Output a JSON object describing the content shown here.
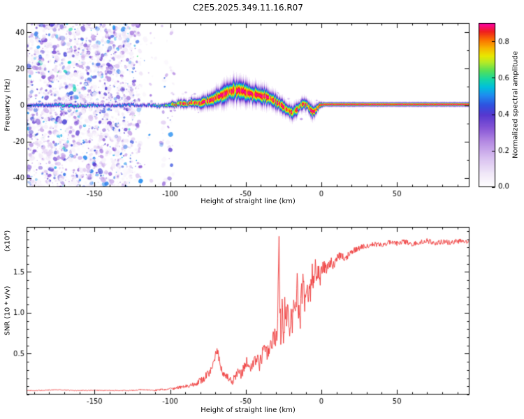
{
  "title": "C2E5.2025.349.11.16.R07",
  "chart_data": [
    {
      "type": "heatmap",
      "title": "",
      "xlabel": "Height of straight line (km)",
      "ylabel": "Frequency (Hz)",
      "xlim": [
        -195,
        98
      ],
      "ylim": [
        -45,
        45
      ],
      "xticks": {
        "values": [
          -150,
          -100,
          -50,
          0,
          50
        ],
        "labels": [
          "-150",
          "-100",
          "-50",
          "0",
          "50"
        ],
        "minor_step": 10
      },
      "yticks": {
        "values": [
          40,
          20,
          0,
          -20,
          -40
        ],
        "labels": [
          "40",
          "20",
          "0",
          "-20",
          "-40"
        ],
        "minor_step": 10
      },
      "colorbar": {
        "label": "Normalized spectral amplitude",
        "range": [
          0,
          0.9
        ],
        "ticks": {
          "values": [
            0.0,
            0.2,
            0.4,
            0.6,
            0.8
          ],
          "labels": [
            "0.0",
            "0.2",
            "0.4",
            "0.6",
            "0.8"
          ]
        },
        "colormap_stops": [
          [
            0.0,
            "#ffffff"
          ],
          [
            0.08,
            "#f1e8f8"
          ],
          [
            0.18,
            "#d8bff0"
          ],
          [
            0.28,
            "#b388e2"
          ],
          [
            0.36,
            "#8655d6"
          ],
          [
            0.44,
            "#5638cf"
          ],
          [
            0.5,
            "#2f52e0"
          ],
          [
            0.56,
            "#1e8cf0"
          ],
          [
            0.61,
            "#00c0dc"
          ],
          [
            0.66,
            "#18d8a0"
          ],
          [
            0.71,
            "#56e056"
          ],
          [
            0.76,
            "#b2ea28"
          ],
          [
            0.8,
            "#e8e800"
          ],
          [
            0.85,
            "#f8b400"
          ],
          [
            0.9,
            "#fa6e00"
          ],
          [
            0.95,
            "#ef1e1e"
          ],
          [
            1.0,
            "#ff00aa"
          ]
        ]
      },
      "ridge": {
        "comment": "center frequency of the echo ridge vs height of straight line",
        "x": [
          -195,
          -175,
          -160,
          -150,
          -140,
          -132,
          -126,
          -120,
          -114,
          -108,
          -102,
          -97,
          -93,
          -89,
          -85,
          -81,
          -77,
          -73,
          -69,
          -65,
          -61,
          -57,
          -53,
          -49,
          -45,
          -41,
          -37,
          -33,
          -30,
          -27,
          -24,
          -21,
          -19,
          -17,
          -15,
          -13,
          -11,
          -9,
          -7,
          -5,
          -3,
          -1,
          2,
          10,
          30,
          60,
          98
        ],
        "freq_hz": [
          0,
          0.3,
          -0.2,
          0.2,
          -0.3,
          0,
          0.4,
          0,
          0.3,
          -0.2,
          0.2,
          0.5,
          1.2,
          0.8,
          1.5,
          1.2,
          2.0,
          3.0,
          4.5,
          6.0,
          7.5,
          8.5,
          8.0,
          7.0,
          6.0,
          5.5,
          5.0,
          3.5,
          2.0,
          0.5,
          -1.5,
          -3.0,
          -4.0,
          -3.0,
          -1.0,
          0.5,
          1.0,
          0.0,
          -2.5,
          -3.5,
          -1.5,
          0.3,
          0.5,
          0.5,
          0.5,
          0.5,
          0.5
        ],
        "amplitude": [
          0.5,
          0.55,
          0.6,
          0.55,
          0.5,
          0.55,
          0.55,
          0.5,
          0.55,
          0.6,
          0.65,
          0.85,
          0.95,
          0.9,
          1,
          1,
          1,
          1,
          1,
          1,
          1,
          1,
          1,
          1,
          1,
          1,
          1,
          1,
          0.95,
          0.95,
          1,
          1,
          0.95,
          0.9,
          0.95,
          0.9,
          0.95,
          0.9,
          0.95,
          1,
          1,
          1,
          1,
          1,
          1,
          1,
          1
        ],
        "sigma_hz": [
          0.6,
          0.7,
          0.7,
          0.65,
          0.6,
          0.65,
          0.6,
          0.6,
          0.65,
          0.7,
          0.8,
          1.0,
          1.3,
          1.2,
          1.6,
          1.6,
          2.0,
          2.4,
          2.8,
          3.2,
          3.5,
          3.6,
          3.4,
          3.2,
          3.0,
          2.8,
          2.8,
          2.6,
          2.4,
          2.2,
          2.2,
          2.2,
          2.2,
          2.0,
          1.8,
          1.8,
          1.8,
          1.8,
          2.0,
          2.0,
          1.6,
          1.0,
          0.7,
          0.7,
          0.7,
          0.7,
          0.7
        ]
      },
      "noise": {
        "seed": 11,
        "speckle_x_max": -95,
        "fade_width_km": 35,
        "gap": [
          -119,
          -106
        ],
        "blob_count": 3000,
        "ridge_speckle_count": 280
      }
    },
    {
      "type": "line",
      "title": "",
      "xlabel": "Height of straight line (km)",
      "ylabel": "SNR (10 * v/v)",
      "scale_label": "(x10⁴)",
      "xlim": [
        -195,
        98
      ],
      "ylim": [
        0,
        2.05
      ],
      "xticks": {
        "values": [
          -150,
          -100,
          -50,
          0,
          50
        ],
        "labels": [
          "-150",
          "-100",
          "-50",
          "0",
          "50"
        ],
        "minor_step": 10
      },
      "yticks": {
        "values": [
          0.5,
          1.0,
          1.5
        ],
        "labels": [
          "0.5",
          "1.0",
          "1.5"
        ],
        "minor_step": 0.1
      },
      "seed": 42,
      "series": [
        {
          "name": "SNR",
          "color": "#ee3333",
          "x": [
            -195,
            -185,
            -175,
            -165,
            -155,
            -145,
            -135,
            -125,
            -118,
            -112,
            -106,
            -100,
            -96,
            -92,
            -88,
            -84,
            -80,
            -77,
            -74,
            -71,
            -69,
            -67,
            -65,
            -63,
            -61,
            -59,
            -57,
            -55,
            -53,
            -51,
            -49,
            -47,
            -45,
            -43,
            -41,
            -39,
            -37,
            -35,
            -33,
            -31,
            -29.4,
            -28.7,
            -28,
            -27.4,
            -26.6,
            -25.8,
            -25,
            -24,
            -23,
            -22,
            -21,
            -20,
            -19,
            -18,
            -17,
            -16,
            -15,
            -14,
            -13,
            -12,
            -11,
            -10,
            -9,
            -8,
            -7,
            -6,
            -5,
            -4,
            -3,
            -2,
            -1,
            0,
            2,
            4,
            6,
            8,
            10,
            13,
            16,
            19,
            22,
            26,
            30,
            35,
            40,
            45,
            50,
            55,
            60,
            65,
            70,
            75,
            80,
            85,
            90,
            95,
            98
          ],
          "y": [
            0.05,
            0.05,
            0.06,
            0.05,
            0.05,
            0.05,
            0.05,
            0.05,
            0.06,
            0.05,
            0.06,
            0.07,
            0.08,
            0.09,
            0.11,
            0.13,
            0.17,
            0.21,
            0.27,
            0.42,
            0.55,
            0.38,
            0.25,
            0.22,
            0.18,
            0.16,
            0.2,
            0.28,
            0.24,
            0.33,
            0.4,
            0.3,
            0.38,
            0.45,
            0.36,
            0.48,
            0.55,
            0.5,
            0.62,
            0.7,
            0.75,
            1.1,
            1.95,
            1.0,
            0.68,
            1.25,
            0.62,
            1.2,
            0.78,
            1.05,
            0.7,
            1.15,
            0.88,
            1.25,
            0.95,
            1.32,
            1.05,
            0.85,
            1.22,
            1.38,
            1.02,
            1.42,
            1.12,
            1.5,
            1.22,
            1.58,
            1.35,
            1.68,
            1.4,
            1.52,
            1.38,
            1.48,
            1.58,
            1.52,
            1.62,
            1.56,
            1.68,
            1.7,
            1.65,
            1.74,
            1.77,
            1.8,
            1.82,
            1.84,
            1.83,
            1.86,
            1.85,
            1.87,
            1.84,
            1.86,
            1.88,
            1.85,
            1.87,
            1.86,
            1.88,
            1.86,
            1.87
          ]
        }
      ],
      "noise_profile": {
        "x": [
          -195,
          -120,
          -100,
          -85,
          -75,
          -65,
          -55,
          -45,
          -35,
          -30,
          -25,
          -18,
          -10,
          -4,
          0,
          5,
          12,
          20,
          35,
          98
        ],
        "amp": [
          0.006,
          0.006,
          0.015,
          0.03,
          0.05,
          0.05,
          0.06,
          0.08,
          0.1,
          0.14,
          0.2,
          0.2,
          0.18,
          0.15,
          0.1,
          0.08,
          0.05,
          0.035,
          0.03,
          0.03
        ]
      }
    }
  ]
}
